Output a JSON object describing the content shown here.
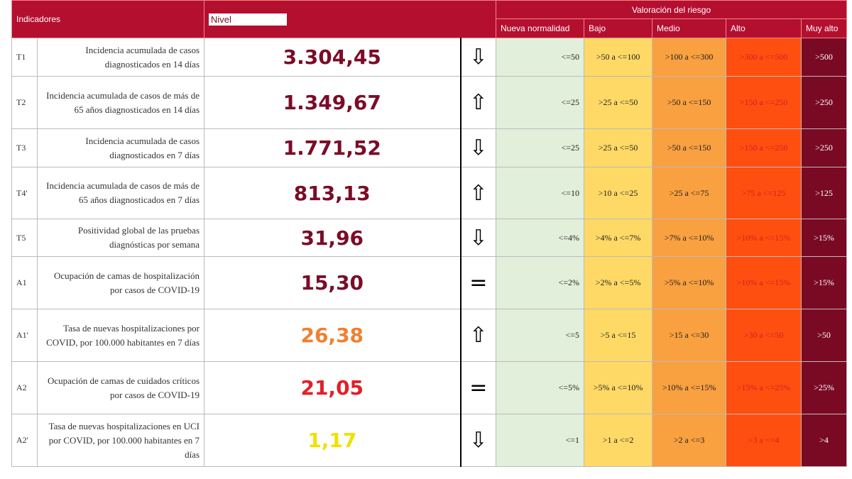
{
  "header": {
    "indicadores": "Indicadores",
    "nivel": "Nivel",
    "valoracion": "Valoración del riesgo",
    "levels": [
      "Nueva normalidad",
      "Bajo",
      "Medio",
      "Alto",
      "Muy alto"
    ]
  },
  "colors": {
    "header": "#b50f30",
    "nueva_normalidad": "#e2efda",
    "bajo": "#ffd966",
    "medio": "#f9a040",
    "alto": "#ff4f10",
    "muy_alto": "#7a0a24"
  },
  "rows": [
    {
      "id": "T1",
      "desc": "Incidencia acumulada de casos diagnosticados en 14 días",
      "value": "3.304,45",
      "value_color": "#7b0c28",
      "trend": "down-arrow",
      "trend_glyph": "⇩",
      "th": [
        "<=50",
        ">50 a <=100",
        ">100 a <=300",
        ">300 a <=500",
        ">500"
      ]
    },
    {
      "id": "T2",
      "desc": "Incidencia acumulada de casos de más de 65 años diagnosticados en 14 días",
      "value": "1.349,67",
      "value_color": "#7b0c28",
      "trend": "up-arrow",
      "trend_glyph": "⇧",
      "th": [
        "<=25",
        ">25 a <=50",
        ">50 a <=150",
        ">150 a <=250",
        ">250"
      ]
    },
    {
      "id": "T3",
      "desc": "Incidencia acumulada de casos diagnosticados en 7 días",
      "value": "1.771,52",
      "value_color": "#7b0c28",
      "trend": "down-arrow",
      "trend_glyph": "⇩",
      "th": [
        "<=25",
        ">25 a <=50",
        ">50 a <=150",
        ">150 a <=250",
        ">250"
      ]
    },
    {
      "id": "T4'",
      "desc": "Incidencia acumulada de casos de más de 65 años diagnosticados en 7 días",
      "value": "813,13",
      "value_color": "#7b0c28",
      "trend": "up-arrow",
      "trend_glyph": "⇧",
      "th": [
        "<=10",
        ">10 a <=25",
        ">25 a <=75",
        ">75 a <=125",
        ">125"
      ]
    },
    {
      "id": "T5",
      "desc": "Positividad global de las pruebas diagnósticas por semana",
      "value": "31,96",
      "value_color": "#7b0c28",
      "trend": "down-arrow",
      "trend_glyph": "⇩",
      "th": [
        "<=4%",
        ">4% a <=7%",
        ">7% a <=10%",
        ">10% a <=15%",
        ">15%"
      ]
    },
    {
      "id": "A1",
      "desc": "Ocupación de camas de hospitalización por casos de COVID-19",
      "value": "15,30",
      "value_color": "#7b0c28",
      "trend": "equal",
      "trend_glyph": "=",
      "th": [
        "<=2%",
        ">2% a <=5%",
        ">5% a <=10%",
        ">10% a <=15%",
        ">15%"
      ]
    },
    {
      "id": "A1'",
      "desc": "Tasa de nuevas hospitalizaciones por COVID, por 100.000 habitantes en 7 días",
      "value": "26,38",
      "value_color": "#f08030",
      "trend": "up-arrow",
      "trend_glyph": "⇧",
      "th": [
        "<=5",
        ">5 a <=15",
        ">15 a <=30",
        ">30 a <=50",
        ">50"
      ]
    },
    {
      "id": "A2",
      "desc": "Ocupación de camas de cuidados críticos por casos de COVID-19",
      "value": "21,05",
      "value_color": "#e0202a",
      "trend": "equal",
      "trend_glyph": "=",
      "th": [
        "<=5%",
        ">5% a <=10%",
        ">10% a <=15%",
        ">15% a <=25%",
        ">25%"
      ]
    },
    {
      "id": "A2'",
      "desc": "Tasa de nuevas hospitalizaciones en UCI por COVID, por 100.000 habitantes en 7 días",
      "value": "1,17",
      "value_color": "#f0e000",
      "trend": "down-arrow",
      "trend_glyph": "⇩",
      "th": [
        "<=1",
        ">1 a <=2",
        ">2 a <=3",
        ">3 a <=4",
        ">4"
      ]
    }
  ]
}
